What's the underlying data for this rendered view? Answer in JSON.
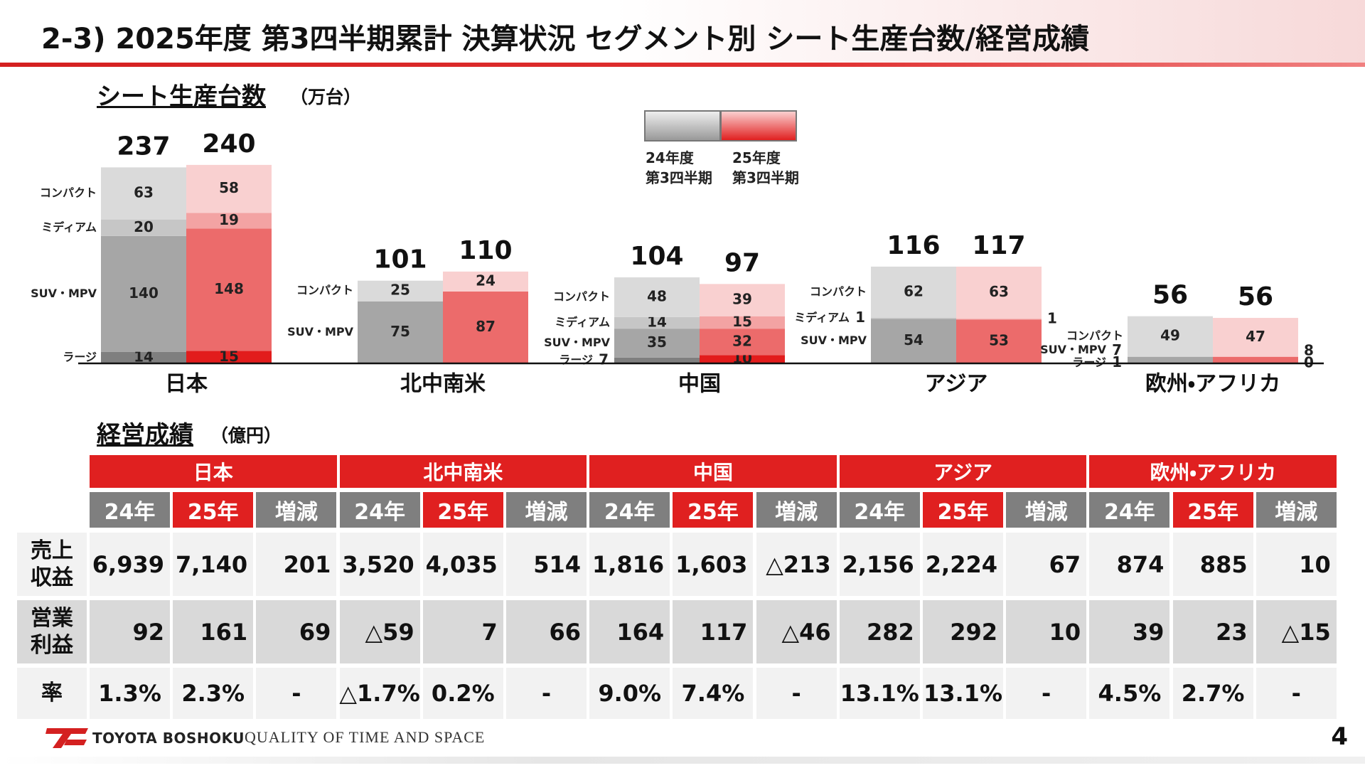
{
  "header": {
    "title": "2-3) 2025年度 第3四半期累計 決算状況 セグメント別 シート生産台数/経営成績",
    "brand": "TOYOTA BOSHOKU",
    "slogan": "QUALITY OF TIME AND SPACE",
    "page": "4"
  },
  "chart_data": {
    "type": "stacked-bar",
    "title": "シート生産台数",
    "unit": "（万台）",
    "categories": [
      "日本",
      "北中南米",
      "中国",
      "アジア",
      "欧州・アフリカ"
    ],
    "segments": [
      "ラージ",
      "SUV・MPV",
      "ミディアム",
      "コンパクト"
    ],
    "series": [
      {
        "name": "24年度\n第3四半期",
        "colors": [
          "#7f7f7f",
          "#a6a6a6",
          "#c6c6c6",
          "#dadada"
        ],
        "totals": [
          237,
          101,
          104,
          116,
          56
        ],
        "values": [
          [
            14,
            null,
            7,
            null,
            1
          ],
          [
            140,
            75,
            35,
            54,
            7
          ],
          [
            20,
            null,
            14,
            1,
            null
          ],
          [
            63,
            25,
            48,
            62,
            49
          ]
        ]
      },
      {
        "name": "25年度\n第3四半期",
        "colors": [
          "#e21c1c",
          "#ec6b6b",
          "#f3a3a3",
          "#f9d0d0"
        ],
        "totals": [
          240,
          110,
          97,
          117,
          56
        ],
        "values": [
          [
            15,
            null,
            10,
            null,
            0
          ],
          [
            148,
            87,
            32,
            53,
            8
          ],
          [
            19,
            null,
            15,
            1,
            null
          ],
          [
            58,
            24,
            39,
            63,
            47
          ]
        ]
      }
    ]
  },
  "table": {
    "title": "経営成績",
    "unit": "（億円）",
    "regions": [
      "日本",
      "北中南米",
      "中国",
      "アジア",
      "欧州・アフリカ"
    ],
    "columns": [
      "24年",
      "25年",
      "増減"
    ],
    "rows": [
      {
        "label": "売上\n収益",
        "cells": [
          "6,939",
          "7,140",
          "201",
          "3,520",
          "4,035",
          "514",
          "1,816",
          "1,603",
          "△213",
          "2,156",
          "2,224",
          "67",
          "874",
          "885",
          "10"
        ]
      },
      {
        "label": "営業\n利益",
        "cells": [
          "92",
          "161",
          "69",
          "△59",
          "7",
          "66",
          "164",
          "117",
          "△46",
          "282",
          "292",
          "10",
          "39",
          "23",
          "△15"
        ]
      },
      {
        "label": "率",
        "cells": [
          "1.3%",
          "2.3%",
          "-",
          "△1.7%",
          "0.2%",
          "-",
          "9.0%",
          "7.4%",
          "-",
          "13.1%",
          "13.1%",
          "-",
          "4.5%",
          "2.7%",
          "-"
        ]
      }
    ]
  }
}
